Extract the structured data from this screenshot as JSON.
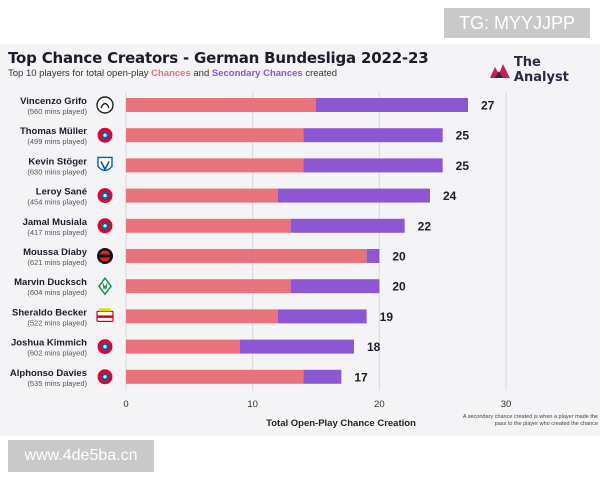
{
  "chart_data": {
    "type": "bar",
    "stacked": true,
    "orientation": "horizontal",
    "title": "Top Chance Creators - German Bundesliga 2022-23",
    "subtitle": {
      "prefix": "Top 10 players for total open-play ",
      "chances": "Chances",
      "and": " and ",
      "secondary": "Secondary Chances",
      "suffix": " created"
    },
    "xlabel": "Total Open-Play Chance Creation",
    "xlim": [
      0,
      30
    ],
    "xticks": [
      "0",
      "10",
      "20",
      "30"
    ],
    "grid": true,
    "categories": [
      {
        "name": "Vincenzo Grifo",
        "mins": "(560 mins played)",
        "club_icon": "freiburg-crest-icon"
      },
      {
        "name": "Thomas Müller",
        "mins": "(499 mins played)",
        "club_icon": "bayern-crest-icon"
      },
      {
        "name": "Kevin Stöger",
        "mins": "(630 mins played)",
        "club_icon": "bochum-crest-icon"
      },
      {
        "name": "Leroy Sané",
        "mins": "(454 mins played)",
        "club_icon": "bayern-crest-icon"
      },
      {
        "name": "Jamal Musiala",
        "mins": "(417 mins played)",
        "club_icon": "bayern-crest-icon"
      },
      {
        "name": "Moussa Diaby",
        "mins": "(621 mins played)",
        "club_icon": "leverkusen-crest-icon"
      },
      {
        "name": "Marvin Ducksch",
        "mins": "(604 mins played)",
        "club_icon": "bremen-crest-icon"
      },
      {
        "name": "Sheraldo Becker",
        "mins": "(522 mins played)",
        "club_icon": "union-crest-icon"
      },
      {
        "name": "Joshua Kimmich",
        "mins": "(602 mins played)",
        "club_icon": "bayern-crest-icon"
      },
      {
        "name": "Alphonso Davies",
        "mins": "(535 mins played)",
        "club_icon": "bayern-crest-icon"
      }
    ],
    "series": [
      {
        "key": "chances",
        "values": [
          15,
          14,
          14,
          12,
          13,
          19,
          13,
          12,
          9,
          14
        ],
        "color": "#e8737c"
      },
      {
        "key": "secondary",
        "values": [
          12,
          11,
          11,
          12,
          9,
          1,
          7,
          7,
          9,
          3
        ],
        "color": "#8d57d4"
      }
    ],
    "totals": [
      "27",
      "25",
      "25",
      "24",
      "22",
      "20",
      "20",
      "19",
      "18",
      "17"
    ],
    "footnote": "A secondary chance created is when a player made the pass to the player who created the chance"
  },
  "brand": {
    "name": "The Analyst",
    "accent": "#c41e5a"
  },
  "watermarks": {
    "top": "TG: MYYJJPP",
    "bottom": "www.4de5ba.cn"
  }
}
